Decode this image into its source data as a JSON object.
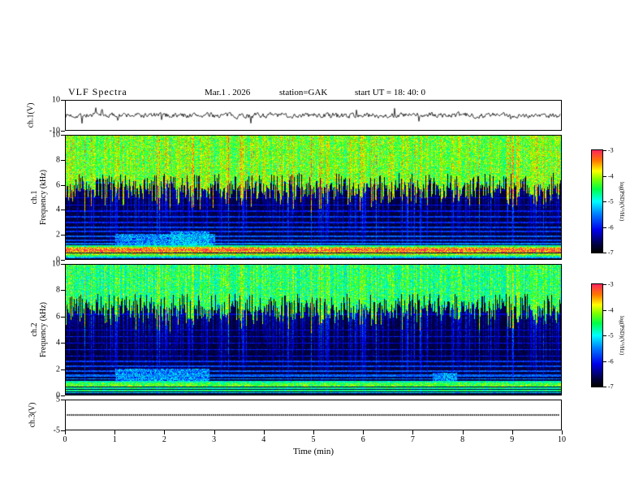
{
  "header": {
    "title": "VLF  Spectra",
    "date": "Mar.1 . 2026",
    "station": "station=GAK",
    "start_ut": "start UT =  18: 40: 0"
  },
  "axes": {
    "x_label": "Time (min)",
    "x_ticks": [
      "0",
      "1",
      "2",
      "3",
      "4",
      "5",
      "6",
      "7",
      "8",
      "9",
      "10"
    ]
  },
  "colorbar": {
    "label": "log(PSD)(V²/Hz)",
    "ticks": [
      "-3",
      "-4",
      "-5",
      "-6",
      "-7"
    ]
  },
  "colormap": [
    [
      0.0,
      [
        0,
        0,
        0
      ]
    ],
    [
      0.08,
      [
        0,
        0,
        70
      ]
    ],
    [
      0.22,
      [
        0,
        0,
        235
      ]
    ],
    [
      0.38,
      [
        0,
        130,
        255
      ]
    ],
    [
      0.5,
      [
        0,
        255,
        255
      ]
    ],
    [
      0.62,
      [
        0,
        255,
        70
      ]
    ],
    [
      0.72,
      [
        130,
        255,
        0
      ]
    ],
    [
      0.8,
      [
        255,
        255,
        0
      ]
    ],
    [
      0.9,
      [
        255,
        120,
        0
      ]
    ],
    [
      1.0,
      [
        255,
        40,
        90
      ]
    ]
  ],
  "streaks": {
    "seed": 99,
    "density": 0.55
  },
  "chart_data": [
    {
      "id": "ch1_waveform",
      "type": "line",
      "ylabel": "ch.1(V)",
      "ylim": [
        -10,
        10
      ],
      "yticks": [
        10,
        -10
      ],
      "xlim": [
        0,
        10
      ],
      "seed": 7,
      "description": "continuous broadband noise trace centred on 0 V, typical excursions about ±2 V with brief spikes to about ±5 V"
    },
    {
      "id": "ch1_spectrogram",
      "type": "heatmap",
      "ylabel": [
        "ch.1",
        "Frequency (kHz)"
      ],
      "ylim": [
        0,
        10
      ],
      "yticks": [
        10,
        8,
        6,
        4,
        2,
        0
      ],
      "xlim": [
        0,
        10
      ],
      "psd_range": [
        -7,
        -3
      ],
      "seed": 11,
      "streak_gain": 1.0,
      "top_cut": 6.3,
      "top_base": 0.5,
      "lines": [
        {
          "f": 6.2,
          "w": 0.05,
          "amp": 0.22
        },
        {
          "f": 5.6,
          "w": 0.05,
          "amp": 0.2
        },
        {
          "f": 5.0,
          "w": 0.05,
          "amp": 0.22
        },
        {
          "f": 4.4,
          "w": 0.05,
          "amp": 0.24
        },
        {
          "f": 3.9,
          "w": 0.06,
          "amp": 0.26
        },
        {
          "f": 3.45,
          "w": 0.06,
          "amp": 0.3
        },
        {
          "f": 3.0,
          "w": 0.06,
          "amp": 0.28
        },
        {
          "f": 2.6,
          "w": 0.06,
          "amp": 0.32
        },
        {
          "f": 2.25,
          "w": 0.06,
          "amp": 0.3
        },
        {
          "f": 1.9,
          "w": 0.07,
          "amp": 0.35
        },
        {
          "f": 1.55,
          "w": 0.07,
          "amp": 0.33
        },
        {
          "f": 1.3,
          "w": 0.06,
          "amp": 0.38
        },
        {
          "f": 1.1,
          "w": 0.05,
          "amp": 0.6
        },
        {
          "f": 0.95,
          "w": 0.06,
          "amp": 0.85
        },
        {
          "f": 0.78,
          "w": 0.08,
          "amp": 1.0
        },
        {
          "f": 0.6,
          "w": 0.07,
          "amp": 0.92
        },
        {
          "f": 0.45,
          "w": 0.06,
          "amp": 0.8
        },
        {
          "f": 0.3,
          "w": 0.06,
          "amp": 0.65
        },
        {
          "f": 0.15,
          "w": 0.05,
          "amp": 0.45
        }
      ],
      "blobs": [
        {
          "x0": 1.0,
          "x1": 3.0,
          "f0": 0.9,
          "f1": 2.1,
          "amp": 0.5
        },
        {
          "x0": 2.1,
          "x1": 2.9,
          "f0": 1.1,
          "f1": 2.3,
          "amp": 0.52
        }
      ],
      "description": "dark background with dense vertical sferic streaks, diffuse green emission above ~6 kHz, weak blue horizontal harmonic lines, intense red/yellow band below ~1.2 kHz"
    },
    {
      "id": "ch2_spectrogram",
      "type": "heatmap",
      "ylabel": [
        "ch.2",
        "Frequency (kHz)"
      ],
      "ylim": [
        0,
        10
      ],
      "yticks": [
        10,
        8,
        6,
        4,
        2,
        0
      ],
      "xlim": [
        0,
        10
      ],
      "psd_range": [
        -7,
        -3
      ],
      "seed": 23,
      "streak_gain": 0.9,
      "top_cut": 7.1,
      "top_base": 0.42,
      "lines": [
        {
          "f": 6.2,
          "w": 0.05,
          "amp": 0.2
        },
        {
          "f": 5.0,
          "w": 0.05,
          "amp": 0.22
        },
        {
          "f": 4.5,
          "w": 0.05,
          "amp": 0.26
        },
        {
          "f": 4.0,
          "w": 0.05,
          "amp": 0.24
        },
        {
          "f": 3.5,
          "w": 0.06,
          "amp": 0.28
        },
        {
          "f": 3.0,
          "w": 0.06,
          "amp": 0.26
        },
        {
          "f": 2.6,
          "w": 0.06,
          "amp": 0.3
        },
        {
          "f": 2.2,
          "w": 0.06,
          "amp": 0.32
        },
        {
          "f": 1.85,
          "w": 0.07,
          "amp": 0.34
        },
        {
          "f": 1.5,
          "w": 0.07,
          "amp": 0.36
        },
        {
          "f": 1.25,
          "w": 0.06,
          "amp": 0.4
        },
        {
          "f": 1.05,
          "w": 0.06,
          "amp": 0.55
        },
        {
          "f": 0.88,
          "w": 0.07,
          "amp": 0.68
        },
        {
          "f": 0.7,
          "w": 0.07,
          "amp": 0.72
        },
        {
          "f": 0.52,
          "w": 0.06,
          "amp": 0.6
        },
        {
          "f": 0.35,
          "w": 0.06,
          "amp": 0.62
        },
        {
          "f": 0.18,
          "w": 0.05,
          "amp": 0.5
        }
      ],
      "blobs": [
        {
          "x0": 1.0,
          "x1": 2.9,
          "f0": 0.9,
          "f1": 2.0,
          "amp": 0.5
        },
        {
          "x0": 7.4,
          "x1": 7.9,
          "f0": 0.8,
          "f1": 1.7,
          "amp": 0.5
        }
      ],
      "description": "dark background with vertical sferic streaks aligned with ch.1, green/yellow banded structure below ~1.2 kHz, horizontal harmonic lines"
    },
    {
      "id": "ch3_flat",
      "type": "line",
      "ylabel": "ch.3(V)",
      "ylim": [
        -5,
        5
      ],
      "yticks": [
        5,
        -5
      ],
      "xlim": [
        0,
        10
      ],
      "value": 0,
      "description": "flat dotted trace at a constant 0 V"
    }
  ]
}
